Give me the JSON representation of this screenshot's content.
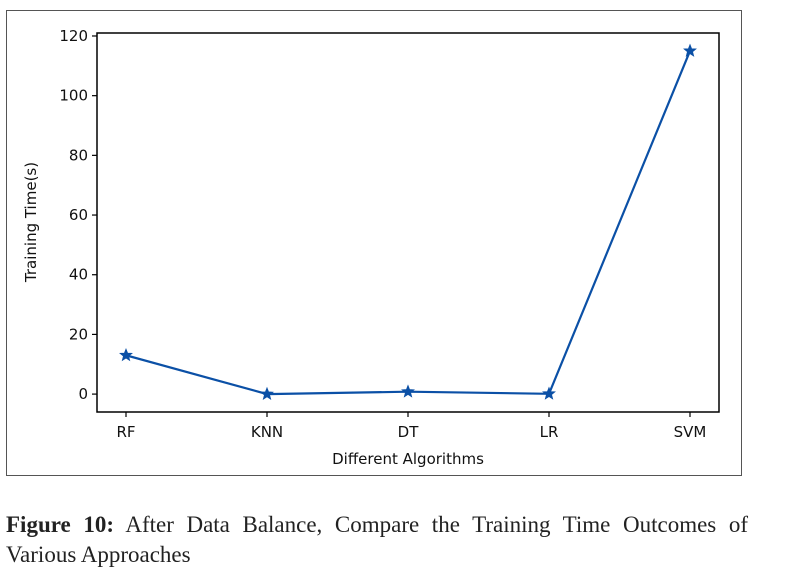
{
  "chart_data": {
    "type": "line",
    "title": "",
    "xlabel": "Different Algorithms",
    "ylabel": "Training Time(s)",
    "categories": [
      "RF",
      "KNN",
      "DT",
      "LR",
      "SVM"
    ],
    "series": [
      {
        "name": "Training Time",
        "values": [
          13,
          0,
          0.8,
          0.1,
          115
        ],
        "marker": "star"
      }
    ],
    "ylim": [
      -6,
      121
    ],
    "yticks": [
      0,
      20,
      40,
      60,
      80,
      100,
      120
    ],
    "grid": false,
    "line_color": "#0b50a6"
  },
  "caption": {
    "label": "Figure 10:",
    "text": "After Data Balance, Compare the Training Time Outcomes of Various Approaches"
  }
}
